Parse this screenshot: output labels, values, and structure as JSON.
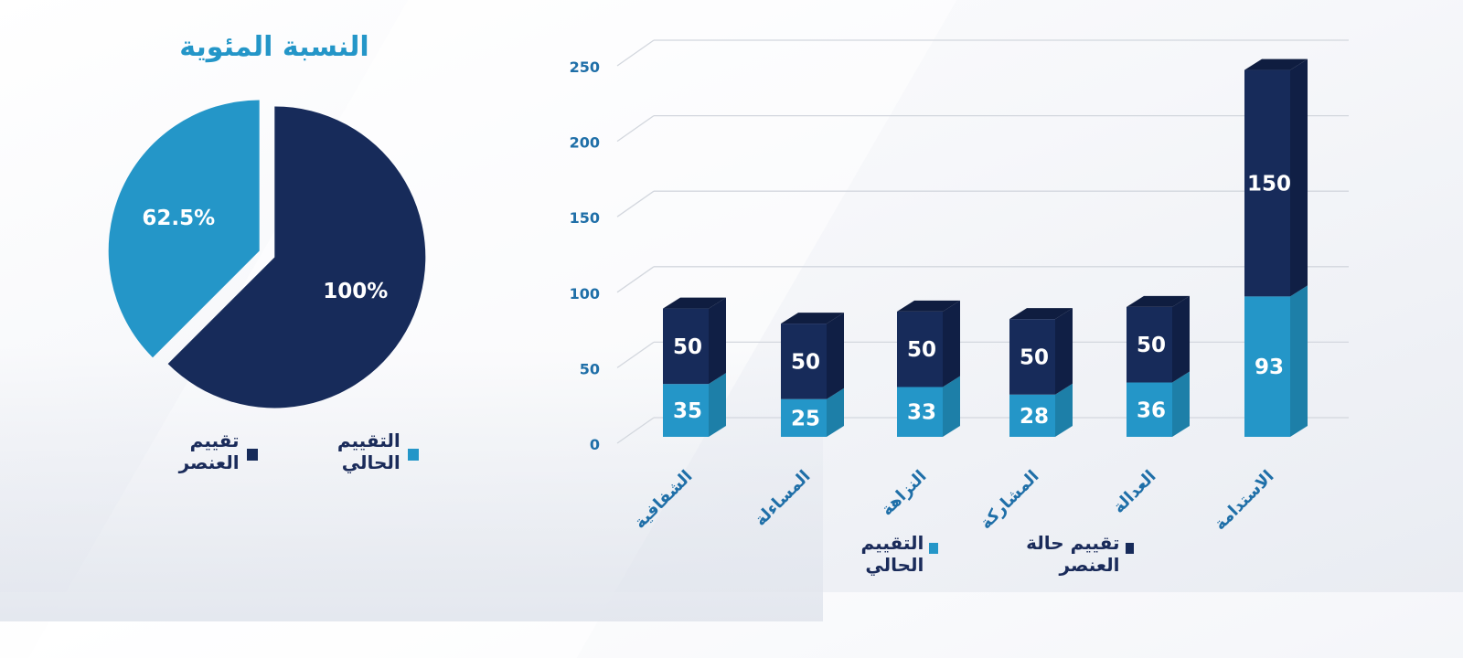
{
  "pie": {
    "title": "النسبة المئوية",
    "slices": [
      {
        "label": "62.5%",
        "value": 37.5,
        "color": "#2496c8"
      },
      {
        "label": "100%",
        "value": 62.5,
        "color": "#172b5a"
      }
    ],
    "legend": [
      {
        "label": "التقييم الحالي",
        "color": "#2496c8"
      },
      {
        "label": "تقييم العنصر",
        "color": "#172b5a"
      }
    ]
  },
  "bar_legend": [
    {
      "label": "تقييم حالة العنصر",
      "color": "#172b5a"
    },
    {
      "label": "التقييم الحالي",
      "color": "#2496c8"
    }
  ],
  "chart_data": [
    {
      "type": "pie",
      "title": "النسبة المئوية",
      "categories": [
        "التقييم الحالي",
        "تقييم العنصر"
      ],
      "values": [
        37.5,
        62.5
      ],
      "data_labels": [
        "62.5%",
        "100%"
      ],
      "colors": [
        "#2496c8",
        "#172b5a"
      ],
      "legend_position": "bottom"
    },
    {
      "type": "bar",
      "stacked": true,
      "categories": [
        "الاستدامة",
        "العدالة",
        "المشاركة",
        "النزاهة",
        "المساءلة",
        "الشفافية"
      ],
      "series": [
        {
          "name": "التقييم الحالي",
          "values": [
            93,
            36,
            28,
            33,
            25,
            35
          ],
          "color": "#2496c8",
          "side_color": "#1d7fa8"
        },
        {
          "name": "تقييم حالة العنصر",
          "values": [
            150,
            50,
            50,
            50,
            50,
            50
          ],
          "color": "#172b5a",
          "side_color": "#101f45",
          "top_color": "#0f1d40"
        }
      ],
      "yticks": [
        0,
        50,
        100,
        150,
        200,
        250
      ],
      "ylim": [
        0,
        250
      ],
      "grid": true,
      "legend_position": "bottom"
    }
  ]
}
